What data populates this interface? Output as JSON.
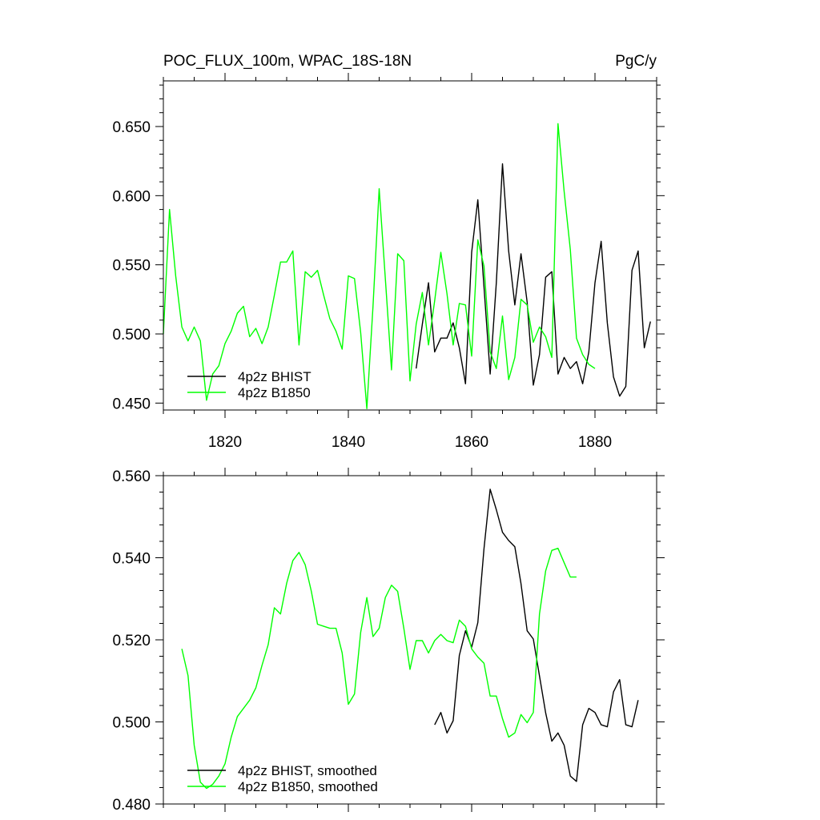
{
  "colors": {
    "bhist": "#000000",
    "b1850": "#00ff00",
    "axes": "#000000"
  },
  "chart_data": [
    {
      "type": "line",
      "title": "POC_FLUX_100m, WPAC_18S-18N",
      "units": "PgC/y",
      "xlim": [
        1810,
        1890
      ],
      "ylim": [
        0.445,
        0.683
      ],
      "xticks": [
        1820,
        1840,
        1860,
        1880
      ],
      "yticks": [
        0.45,
        0.5,
        0.55,
        0.6,
        0.65
      ],
      "ytick_labels": [
        "0.450",
        "0.500",
        "0.550",
        "0.600",
        "0.650"
      ],
      "legend_position": "bottom-left",
      "series": [
        {
          "name": "4p2z BHIST",
          "color": "#000000",
          "x": [
            1851,
            1852,
            1853,
            1854,
            1855,
            1856,
            1857,
            1858,
            1859,
            1860,
            1861,
            1862,
            1863,
            1864,
            1865,
            1866,
            1867,
            1868,
            1869,
            1870,
            1871,
            1872,
            1873,
            1874,
            1875,
            1876,
            1877,
            1878,
            1879,
            1880,
            1881,
            1882,
            1883,
            1884,
            1885,
            1886,
            1887,
            1888,
            1889
          ],
          "y": [
            0.475,
            0.507,
            0.537,
            0.487,
            0.497,
            0.497,
            0.508,
            0.49,
            0.464,
            0.559,
            0.597,
            0.534,
            0.471,
            0.537,
            0.623,
            0.56,
            0.521,
            0.558,
            0.523,
            0.463,
            0.485,
            0.541,
            0.545,
            0.471,
            0.483,
            0.475,
            0.48,
            0.464,
            0.487,
            0.537,
            0.567,
            0.508,
            0.469,
            0.455,
            0.462,
            0.546,
            0.56,
            0.49,
            0.509
          ]
        },
        {
          "name": "4p2z B1850",
          "color": "#00ff00",
          "x": [
            1810,
            1811,
            1812,
            1813,
            1814,
            1815,
            1816,
            1817,
            1818,
            1819,
            1820,
            1821,
            1822,
            1823,
            1824,
            1825,
            1826,
            1827,
            1828,
            1829,
            1830,
            1831,
            1832,
            1833,
            1834,
            1835,
            1836,
            1837,
            1838,
            1839,
            1840,
            1841,
            1842,
            1843,
            1844,
            1845,
            1846,
            1847,
            1848,
            1849,
            1850,
            1851,
            1852,
            1853,
            1854,
            1855,
            1856,
            1857,
            1858,
            1859,
            1860,
            1861,
            1862,
            1863,
            1864,
            1865,
            1866,
            1867,
            1868,
            1869,
            1870,
            1871,
            1872,
            1873,
            1874,
            1875,
            1876,
            1877,
            1878,
            1879,
            1880
          ],
          "y": [
            0.5,
            0.59,
            0.542,
            0.505,
            0.495,
            0.505,
            0.495,
            0.452,
            0.471,
            0.477,
            0.493,
            0.502,
            0.515,
            0.52,
            0.498,
            0.504,
            0.493,
            0.505,
            0.528,
            0.552,
            0.552,
            0.56,
            0.492,
            0.545,
            0.541,
            0.546,
            0.528,
            0.511,
            0.502,
            0.489,
            0.542,
            0.54,
            0.501,
            0.446,
            0.52,
            0.605,
            0.54,
            0.474,
            0.558,
            0.553,
            0.466,
            0.507,
            0.53,
            0.492,
            0.524,
            0.559,
            0.529,
            0.492,
            0.522,
            0.521,
            0.484,
            0.568,
            0.549,
            0.487,
            0.475,
            0.513,
            0.467,
            0.483,
            0.525,
            0.521,
            0.494,
            0.505,
            0.498,
            0.483,
            0.652,
            0.603,
            0.561,
            0.497,
            0.485,
            0.478,
            0.475
          ]
        }
      ]
    },
    {
      "type": "line",
      "title": "",
      "xlim": [
        1810,
        1890
      ],
      "ylim": [
        0.48,
        0.56
      ],
      "xticks": [
        1820,
        1840,
        1860,
        1880
      ],
      "yticks": [
        0.48,
        0.5,
        0.52,
        0.54,
        0.56
      ],
      "ytick_labels": [
        "0.480",
        "0.500",
        "0.520",
        "0.540",
        "0.560"
      ],
      "legend_position": "bottom-left",
      "series": [
        {
          "name": "4p2z BHIST, smoothed",
          "color": "#000000",
          "x": [
            1854,
            1855,
            1856,
            1857,
            1858,
            1859,
            1860,
            1861,
            1862,
            1863,
            1864,
            1865,
            1866,
            1867,
            1868,
            1869,
            1870,
            1871,
            1872,
            1873,
            1874,
            1875,
            1876,
            1877,
            1878,
            1879,
            1880,
            1881,
            1882,
            1883,
            1884,
            1885,
            1886,
            1887
          ],
          "y": [
            0.4993,
            0.5023,
            0.4973,
            0.5003,
            0.5162,
            0.5222,
            0.5182,
            0.5242,
            0.5422,
            0.5567,
            0.5517,
            0.5462,
            0.5442,
            0.5427,
            0.5337,
            0.5222,
            0.5202,
            0.5112,
            0.5022,
            0.4953,
            0.4973,
            0.4943,
            0.4868,
            0.4855,
            0.4993,
            0.5033,
            0.5023,
            0.4993,
            0.4988,
            0.5073,
            0.5103,
            0.4993,
            0.4988,
            0.5053
          ]
        },
        {
          "name": "4p2z B1850, smoothed",
          "color": "#00ff00",
          "x": [
            1813,
            1814,
            1815,
            1816,
            1817,
            1818,
            1819,
            1820,
            1821,
            1822,
            1823,
            1824,
            1825,
            1826,
            1827,
            1828,
            1829,
            1830,
            1831,
            1832,
            1833,
            1834,
            1835,
            1836,
            1837,
            1838,
            1839,
            1840,
            1841,
            1842,
            1843,
            1844,
            1845,
            1846,
            1847,
            1848,
            1849,
            1850,
            1851,
            1852,
            1853,
            1854,
            1855,
            1856,
            1857,
            1858,
            1859,
            1860,
            1861,
            1862,
            1863,
            1864,
            1865,
            1866,
            1867,
            1868,
            1869,
            1870,
            1871,
            1872,
            1873,
            1874,
            1875,
            1876,
            1877
          ],
          "y": [
            0.5178,
            0.5113,
            0.4943,
            0.4853,
            0.4838,
            0.4848,
            0.4868,
            0.4898,
            0.4963,
            0.5013,
            0.5033,
            0.5053,
            0.5083,
            0.5138,
            0.5188,
            0.5278,
            0.5263,
            0.5338,
            0.5393,
            0.5413,
            0.5383,
            0.5318,
            0.5238,
            0.5233,
            0.5228,
            0.5228,
            0.5168,
            0.5043,
            0.5068,
            0.5218,
            0.5303,
            0.5208,
            0.5228,
            0.5303,
            0.5333,
            0.5318,
            0.5228,
            0.5128,
            0.5198,
            0.5198,
            0.5168,
            0.5198,
            0.5213,
            0.5198,
            0.5193,
            0.5248,
            0.5233,
            0.5178,
            0.5158,
            0.5143,
            0.5063,
            0.5063,
            0.5008,
            0.4963,
            0.4973,
            0.5018,
            0.4998,
            0.5023,
            0.5263,
            0.5368,
            0.5418,
            0.5423,
            0.5388,
            0.5353,
            0.5353
          ]
        }
      ]
    }
  ]
}
